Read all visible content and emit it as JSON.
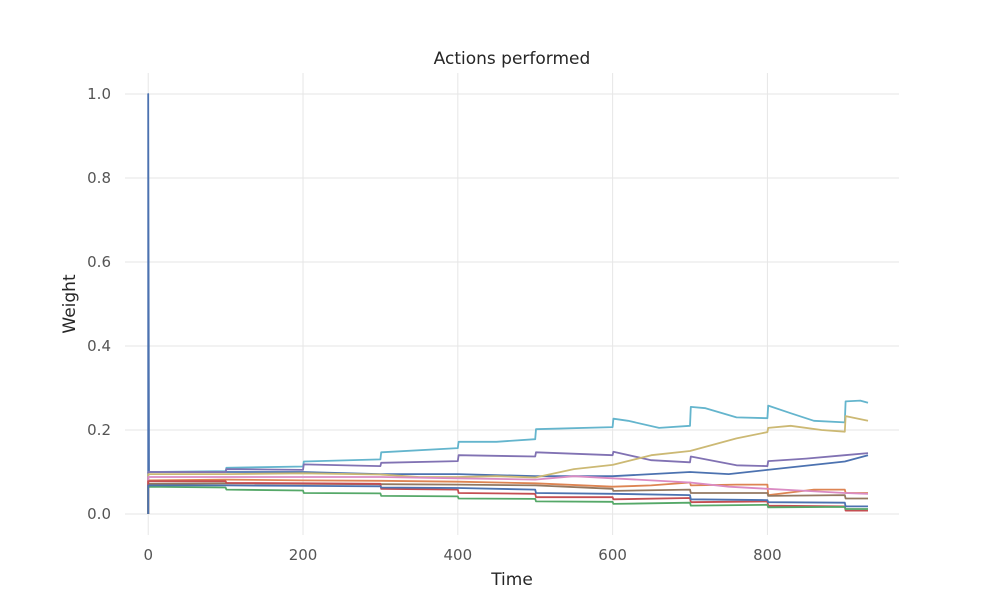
{
  "chart_data": {
    "type": "line",
    "title": "Actions performed",
    "xlabel": "Time",
    "ylabel": "Weight",
    "xlim": [
      -30,
      970
    ],
    "ylim": [
      -0.05,
      1.05
    ],
    "xticks": [
      0,
      200,
      400,
      600,
      800
    ],
    "yticks": [
      0.0,
      0.2,
      0.4,
      0.6,
      0.8,
      1.0
    ],
    "grid": true,
    "legend": "none",
    "series": [
      {
        "color": "#4c72b0",
        "points": [
          [
            0,
            0.0
          ],
          [
            0,
            1.0
          ],
          [
            1,
            0.1
          ],
          [
            100,
            0.1
          ],
          [
            200,
            0.1
          ],
          [
            300,
            0.095
          ],
          [
            400,
            0.095
          ],
          [
            500,
            0.09
          ],
          [
            600,
            0.09
          ],
          [
            700,
            0.1
          ],
          [
            750,
            0.095
          ],
          [
            800,
            0.105
          ],
          [
            900,
            0.125
          ],
          [
            930,
            0.14
          ]
        ]
      },
      {
        "color": "#64b5cd",
        "points": [
          [
            0,
            0.0
          ],
          [
            0,
            0.1
          ],
          [
            100,
            0.102
          ],
          [
            101,
            0.11
          ],
          [
            200,
            0.113
          ],
          [
            201,
            0.125
          ],
          [
            300,
            0.13
          ],
          [
            301,
            0.147
          ],
          [
            400,
            0.157
          ],
          [
            401,
            0.172
          ],
          [
            450,
            0.172
          ],
          [
            500,
            0.178
          ],
          [
            501,
            0.202
          ],
          [
            600,
            0.207
          ],
          [
            601,
            0.227
          ],
          [
            620,
            0.222
          ],
          [
            660,
            0.205
          ],
          [
            700,
            0.21
          ],
          [
            701,
            0.255
          ],
          [
            720,
            0.252
          ],
          [
            760,
            0.23
          ],
          [
            800,
            0.228
          ],
          [
            801,
            0.258
          ],
          [
            830,
            0.24
          ],
          [
            860,
            0.222
          ],
          [
            900,
            0.218
          ],
          [
            901,
            0.268
          ],
          [
            920,
            0.27
          ],
          [
            930,
            0.265
          ]
        ]
      },
      {
        "color": "#8172b3",
        "points": [
          [
            0,
            0.0
          ],
          [
            0,
            0.1
          ],
          [
            100,
            0.1
          ],
          [
            101,
            0.107
          ],
          [
            200,
            0.105
          ],
          [
            201,
            0.118
          ],
          [
            300,
            0.114
          ],
          [
            301,
            0.122
          ],
          [
            400,
            0.126
          ],
          [
            401,
            0.14
          ],
          [
            500,
            0.137
          ],
          [
            501,
            0.147
          ],
          [
            600,
            0.14
          ],
          [
            601,
            0.148
          ],
          [
            650,
            0.128
          ],
          [
            700,
            0.123
          ],
          [
            701,
            0.137
          ],
          [
            760,
            0.116
          ],
          [
            800,
            0.114
          ],
          [
            801,
            0.126
          ],
          [
            850,
            0.132
          ],
          [
            900,
            0.14
          ],
          [
            930,
            0.145
          ]
        ]
      },
      {
        "color": "#ccb974",
        "points": [
          [
            0,
            0.0
          ],
          [
            0,
            0.095
          ],
          [
            100,
            0.095
          ],
          [
            200,
            0.097
          ],
          [
            300,
            0.094
          ],
          [
            350,
            0.088
          ],
          [
            400,
            0.088
          ],
          [
            450,
            0.09
          ],
          [
            500,
            0.087
          ],
          [
            550,
            0.107
          ],
          [
            600,
            0.117
          ],
          [
            650,
            0.14
          ],
          [
            700,
            0.15
          ],
          [
            760,
            0.18
          ],
          [
            800,
            0.195
          ],
          [
            801,
            0.205
          ],
          [
            830,
            0.21
          ],
          [
            870,
            0.2
          ],
          [
            900,
            0.196
          ],
          [
            901,
            0.233
          ],
          [
            930,
            0.222
          ]
        ]
      },
      {
        "color": "#dd8452",
        "points": [
          [
            0,
            0.0
          ],
          [
            0,
            0.08
          ],
          [
            100,
            0.082
          ],
          [
            200,
            0.08
          ],
          [
            300,
            0.079
          ],
          [
            400,
            0.077
          ],
          [
            500,
            0.073
          ],
          [
            600,
            0.065
          ],
          [
            650,
            0.068
          ],
          [
            700,
            0.075
          ],
          [
            701,
            0.068
          ],
          [
            760,
            0.07
          ],
          [
            800,
            0.07
          ],
          [
            801,
            0.045
          ],
          [
            860,
            0.058
          ],
          [
            900,
            0.058
          ],
          [
            901,
            0.05
          ],
          [
            930,
            0.05
          ]
        ]
      },
      {
        "color": "#da8bc3",
        "points": [
          [
            0,
            0.0
          ],
          [
            0,
            0.088
          ],
          [
            100,
            0.088
          ],
          [
            200,
            0.088
          ],
          [
            300,
            0.088
          ],
          [
            400,
            0.085
          ],
          [
            500,
            0.082
          ],
          [
            550,
            0.09
          ],
          [
            600,
            0.085
          ],
          [
            650,
            0.08
          ],
          [
            700,
            0.075
          ],
          [
            750,
            0.065
          ],
          [
            800,
            0.06
          ],
          [
            850,
            0.055
          ],
          [
            900,
            0.05
          ],
          [
            930,
            0.048
          ]
        ]
      },
      {
        "color": "#937860",
        "points": [
          [
            0,
            0.0
          ],
          [
            0,
            0.072
          ],
          [
            100,
            0.073
          ],
          [
            200,
            0.072
          ],
          [
            300,
            0.071
          ],
          [
            400,
            0.07
          ],
          [
            500,
            0.068
          ],
          [
            600,
            0.06
          ],
          [
            601,
            0.055
          ],
          [
            700,
            0.058
          ],
          [
            701,
            0.05
          ],
          [
            800,
            0.05
          ],
          [
            801,
            0.043
          ],
          [
            900,
            0.045
          ],
          [
            901,
            0.037
          ],
          [
            930,
            0.037
          ]
        ]
      },
      {
        "color": "#c44e52",
        "points": [
          [
            0,
            0.0
          ],
          [
            0,
            0.078
          ],
          [
            100,
            0.078
          ],
          [
            101,
            0.074
          ],
          [
            200,
            0.073
          ],
          [
            300,
            0.072
          ],
          [
            301,
            0.06
          ],
          [
            400,
            0.058
          ],
          [
            401,
            0.05
          ],
          [
            500,
            0.048
          ],
          [
            501,
            0.04
          ],
          [
            600,
            0.04
          ],
          [
            601,
            0.035
          ],
          [
            700,
            0.038
          ],
          [
            701,
            0.028
          ],
          [
            800,
            0.03
          ],
          [
            801,
            0.02
          ],
          [
            900,
            0.018
          ],
          [
            901,
            0.008
          ],
          [
            930,
            0.008
          ]
        ]
      },
      {
        "color": "#55a868",
        "points": [
          [
            0,
            0.0
          ],
          [
            0,
            0.065
          ],
          [
            100,
            0.063
          ],
          [
            101,
            0.058
          ],
          [
            200,
            0.056
          ],
          [
            201,
            0.05
          ],
          [
            300,
            0.049
          ],
          [
            301,
            0.043
          ],
          [
            400,
            0.042
          ],
          [
            401,
            0.037
          ],
          [
            500,
            0.036
          ],
          [
            501,
            0.03
          ],
          [
            600,
            0.029
          ],
          [
            601,
            0.024
          ],
          [
            700,
            0.027
          ],
          [
            701,
            0.02
          ],
          [
            800,
            0.022
          ],
          [
            801,
            0.016
          ],
          [
            900,
            0.017
          ],
          [
            901,
            0.012
          ],
          [
            930,
            0.012
          ]
        ]
      },
      {
        "color": "#4c72b0",
        "points": [
          [
            0,
            0.0
          ],
          [
            0,
            0.068
          ],
          [
            100,
            0.068
          ],
          [
            200,
            0.067
          ],
          [
            300,
            0.066
          ],
          [
            301,
            0.063
          ],
          [
            400,
            0.062
          ],
          [
            500,
            0.058
          ],
          [
            501,
            0.05
          ],
          [
            600,
            0.048
          ],
          [
            700,
            0.045
          ],
          [
            701,
            0.035
          ],
          [
            800,
            0.033
          ],
          [
            801,
            0.028
          ],
          [
            900,
            0.027
          ],
          [
            901,
            0.018
          ],
          [
            930,
            0.018
          ]
        ]
      }
    ]
  }
}
